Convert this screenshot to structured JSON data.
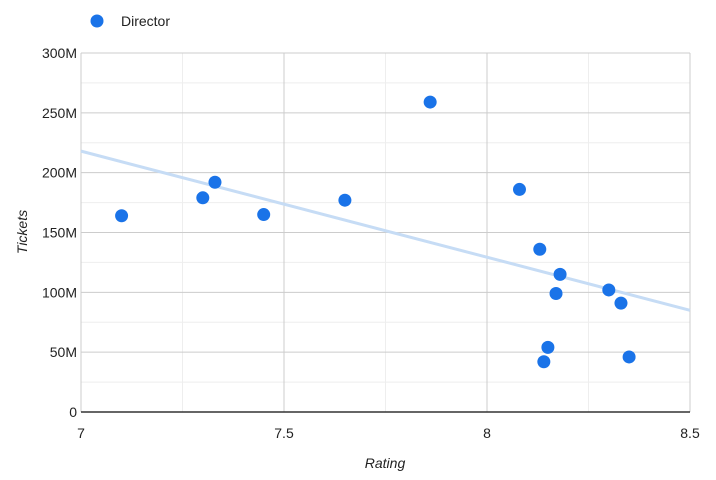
{
  "chart_data": {
    "type": "scatter",
    "xlabel": "Rating",
    "ylabel": "Tickets",
    "xlim": [
      7,
      8.5
    ],
    "ylim": [
      0,
      300000000
    ],
    "x_ticks": [
      7,
      7.5,
      8,
      8.5
    ],
    "x_tick_labels": [
      "7",
      "7.5",
      "8",
      "8.5"
    ],
    "y_ticks": [
      0,
      50000000,
      100000000,
      150000000,
      200000000,
      250000000,
      300000000
    ],
    "y_tick_labels": [
      "0",
      "50M",
      "100M",
      "150M",
      "200M",
      "250M",
      "300M"
    ],
    "grid": true,
    "legend_position": "top-left",
    "series": [
      {
        "name": "Director",
        "color": "#1a73e8",
        "points": [
          {
            "x": 7.1,
            "y": 164000000
          },
          {
            "x": 7.3,
            "y": 179000000
          },
          {
            "x": 7.33,
            "y": 192000000
          },
          {
            "x": 7.45,
            "y": 165000000
          },
          {
            "x": 7.65,
            "y": 177000000
          },
          {
            "x": 7.86,
            "y": 259000000
          },
          {
            "x": 8.08,
            "y": 186000000
          },
          {
            "x": 8.13,
            "y": 136000000
          },
          {
            "x": 8.18,
            "y": 115000000
          },
          {
            "x": 8.17,
            "y": 99000000
          },
          {
            "x": 8.3,
            "y": 102000000
          },
          {
            "x": 8.33,
            "y": 91000000
          },
          {
            "x": 8.15,
            "y": 54000000
          },
          {
            "x": 8.14,
            "y": 42000000
          },
          {
            "x": 8.35,
            "y": 46000000
          }
        ]
      }
    ],
    "trendline": {
      "color": "#c6dcf5",
      "points": [
        {
          "x": 7.0,
          "y": 218000000
        },
        {
          "x": 8.5,
          "y": 85000000
        }
      ]
    }
  }
}
